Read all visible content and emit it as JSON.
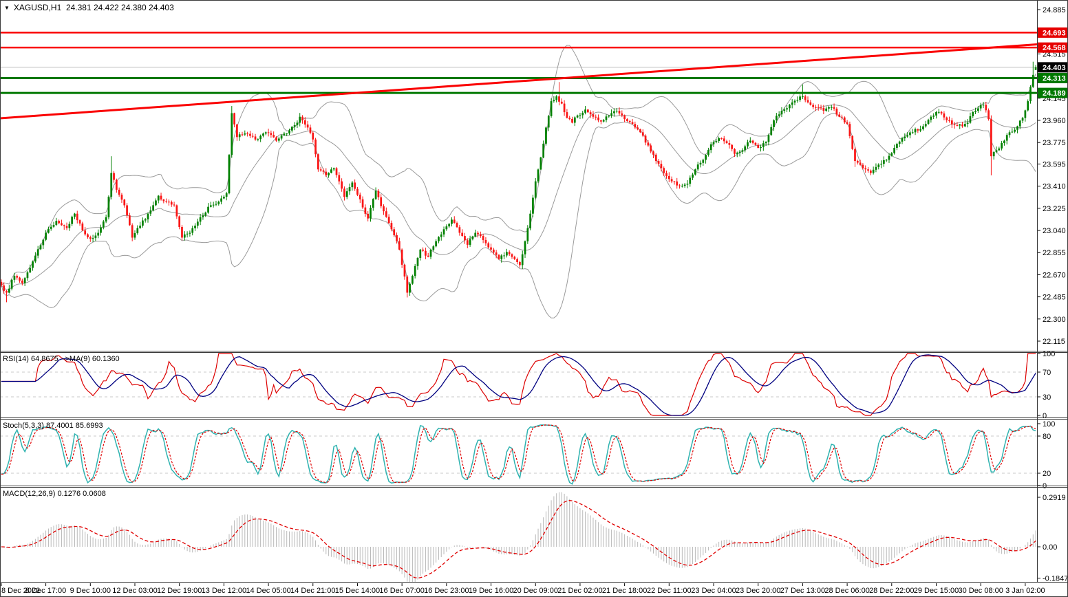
{
  "header": {
    "symbol": "XAGUSD",
    "timeframe": "H1",
    "ohlc": [
      "24.381",
      "24.422",
      "24.380",
      "24.403"
    ],
    "title_text": "XAGUSD,H1  24.381 24.422 24.380 24.403",
    "dropdown_icon": "symbol-dropdown"
  },
  "chart_data": {
    "type": "candlestick",
    "symbol": "XAGUSD",
    "timeframe": "H1",
    "bars": 396,
    "candle_up_color": "#008000",
    "candle_down_color": "#fa1515",
    "bollinger": {
      "period": 20,
      "deviation": 2,
      "color": "#9a9a9a"
    },
    "price_axis_ticks": [
      24.885,
      24.515,
      24.145,
      23.96,
      23.775,
      23.595,
      23.41,
      23.225,
      23.04,
      22.855,
      22.67,
      22.485,
      22.3,
      22.115
    ],
    "time_axis_labels": [
      "8 Dec 2022",
      "8 Dec 17:00",
      "9 Dec 10:00",
      "12 Dec 03:00",
      "12 Dec 19:00",
      "13 Dec 12:00",
      "14 Dec 05:00",
      "14 Dec 21:00",
      "15 Dec 14:00",
      "16 Dec 07:00",
      "16 Dec 23:00",
      "19 Dec 16:00",
      "20 Dec 09:00",
      "21 Dec 02:00",
      "21 Dec 18:00",
      "22 Dec 11:00",
      "23 Dec 04:00",
      "23 Dec 20:00",
      "27 Dec 13:00",
      "28 Dec 06:00",
      "28 Dec 22:00",
      "29 Dec 15:00",
      "30 Dec 08:00",
      "3 Jan 02:00"
    ],
    "label_every_bars": 17,
    "horizontal_lines": [
      {
        "price": 24.693,
        "color": "#fa0000",
        "role": "resistance",
        "width": 2.5
      },
      {
        "price": 24.568,
        "color": "#fa0000",
        "role": "resistance",
        "width": 2.5
      },
      {
        "price": 24.313,
        "color": "#007800",
        "role": "support",
        "width": 3
      },
      {
        "price": 24.189,
        "color": "#007800",
        "role": "support",
        "width": 3
      }
    ],
    "current_price": 24.403,
    "current_price_line_color": "#c0c0c0",
    "trendline": {
      "start_price": 23.977,
      "end_price": 24.595,
      "color": "#fa0000",
      "width": 3
    },
    "last_candle": {
      "open": 24.381,
      "high": 24.422,
      "low": 24.38,
      "close": 24.403
    },
    "close_anchors": [
      [
        0,
        22.58
      ],
      [
        2,
        22.52
      ],
      [
        5,
        22.66
      ],
      [
        8,
        22.6
      ],
      [
        12,
        22.78
      ],
      [
        17,
        23.02
      ],
      [
        21,
        23.12
      ],
      [
        25,
        23.06
      ],
      [
        28,
        23.18
      ],
      [
        31,
        23.04
      ],
      [
        34,
        22.97
      ],
      [
        37,
        23.02
      ],
      [
        40,
        23.15
      ],
      [
        42,
        23.52
      ],
      [
        44,
        23.38
      ],
      [
        47,
        23.25
      ],
      [
        50,
        22.98
      ],
      [
        53,
        23.08
      ],
      [
        56,
        23.18
      ],
      [
        60,
        23.33
      ],
      [
        63,
        23.28
      ],
      [
        66,
        23.25
      ],
      [
        69,
        22.98
      ],
      [
        72,
        23.02
      ],
      [
        76,
        23.15
      ],
      [
        80,
        23.25
      ],
      [
        83,
        23.28
      ],
      [
        86,
        23.35
      ],
      [
        88,
        24.02
      ],
      [
        90,
        23.82
      ],
      [
        93,
        23.85
      ],
      [
        97,
        23.8
      ],
      [
        101,
        23.86
      ],
      [
        105,
        23.79
      ],
      [
        109,
        23.85
      ],
      [
        112,
        23.92
      ],
      [
        114,
        23.99
      ],
      [
        117,
        23.9
      ],
      [
        119,
        23.8
      ],
      [
        121,
        23.55
      ],
      [
        124,
        23.5
      ],
      [
        127,
        23.56
      ],
      [
        129,
        23.45
      ],
      [
        131,
        23.32
      ],
      [
        134,
        23.44
      ],
      [
        137,
        23.3
      ],
      [
        140,
        23.14
      ],
      [
        143,
        23.37
      ],
      [
        146,
        23.2
      ],
      [
        149,
        23.05
      ],
      [
        152,
        22.88
      ],
      [
        155,
        22.52
      ],
      [
        157,
        22.66
      ],
      [
        160,
        22.88
      ],
      [
        163,
        22.82
      ],
      [
        166,
        22.95
      ],
      [
        169,
        23.05
      ],
      [
        172,
        23.13
      ],
      [
        175,
        23.02
      ],
      [
        178,
        22.92
      ],
      [
        181,
        23.02
      ],
      [
        184,
        22.96
      ],
      [
        187,
        22.88
      ],
      [
        190,
        22.8
      ],
      [
        193,
        22.86
      ],
      [
        196,
        22.8
      ],
      [
        198,
        22.75
      ],
      [
        200,
        22.95
      ],
      [
        202,
        23.18
      ],
      [
        204,
        23.45
      ],
      [
        206,
        23.65
      ],
      [
        208,
        23.9
      ],
      [
        210,
        24.12
      ],
      [
        212,
        24.16
      ],
      [
        214,
        24.1
      ],
      [
        216,
        23.98
      ],
      [
        218,
        23.94
      ],
      [
        220,
        24.0
      ],
      [
        223,
        24.05
      ],
      [
        226,
        23.99
      ],
      [
        229,
        23.95
      ],
      [
        232,
        24.0
      ],
      [
        235,
        24.04
      ],
      [
        238,
        23.97
      ],
      [
        241,
        23.93
      ],
      [
        244,
        23.86
      ],
      [
        247,
        23.75
      ],
      [
        250,
        23.62
      ],
      [
        253,
        23.52
      ],
      [
        256,
        23.45
      ],
      [
        259,
        23.41
      ],
      [
        262,
        23.43
      ],
      [
        265,
        23.55
      ],
      [
        268,
        23.63
      ],
      [
        271,
        23.76
      ],
      [
        274,
        23.81
      ],
      [
        277,
        23.77
      ],
      [
        280,
        23.68
      ],
      [
        283,
        23.71
      ],
      [
        286,
        23.79
      ],
      [
        289,
        23.73
      ],
      [
        292,
        23.78
      ],
      [
        295,
        23.96
      ],
      [
        298,
        24.04
      ],
      [
        301,
        24.09
      ],
      [
        304,
        24.13
      ],
      [
        306,
        24.16
      ],
      [
        308,
        24.11
      ],
      [
        311,
        24.07
      ],
      [
        314,
        24.04
      ],
      [
        317,
        24.07
      ],
      [
        320,
        23.99
      ],
      [
        323,
        23.93
      ],
      [
        326,
        23.62
      ],
      [
        329,
        23.56
      ],
      [
        332,
        23.52
      ],
      [
        335,
        23.59
      ],
      [
        338,
        23.63
      ],
      [
        341,
        23.73
      ],
      [
        344,
        23.81
      ],
      [
        348,
        23.86
      ],
      [
        352,
        23.91
      ],
      [
        355,
        23.99
      ],
      [
        358,
        24.03
      ],
      [
        361,
        23.96
      ],
      [
        364,
        23.92
      ],
      [
        367,
        23.91
      ],
      [
        369,
        23.94
      ],
      [
        371,
        24.03
      ],
      [
        373,
        24.06
      ],
      [
        375,
        24.09
      ],
      [
        377,
        23.97
      ],
      [
        378,
        23.66
      ],
      [
        380,
        23.71
      ],
      [
        382,
        23.77
      ],
      [
        385,
        23.86
      ],
      [
        388,
        23.91
      ],
      [
        390,
        23.98
      ],
      [
        392,
        24.12
      ],
      [
        393,
        24.24
      ],
      [
        394,
        24.34
      ],
      [
        395,
        24.403
      ]
    ],
    "wick_overrides": [
      [
        2,
        "low",
        22.44
      ],
      [
        42,
        "high",
        23.66
      ],
      [
        88,
        "high",
        24.08
      ],
      [
        155,
        "low",
        22.48
      ],
      [
        213,
        "high",
        24.28
      ],
      [
        306,
        "high",
        24.26
      ],
      [
        326,
        "low",
        23.57
      ],
      [
        378,
        "low",
        23.5
      ],
      [
        394,
        "high",
        24.45
      ]
    ],
    "indicators": {
      "rsi": {
        "label": "RSI(14) 64.8675  ->MA(9) 60.1360",
        "period": 14,
        "ma_period": 9,
        "last_value": "64.8675",
        "ma_last_value": "60.1360",
        "levels": [
          70,
          30
        ],
        "axis_labels": [
          "100",
          "70",
          "30",
          "0"
        ],
        "axis_values": [
          100,
          70,
          30,
          0
        ],
        "line_color": "#dd0000",
        "ma_color": "#000080"
      },
      "stoch": {
        "label": "Stoch(5,3,3) 87.4001 85.6993",
        "k_period": 5,
        "d_period": 3,
        "slowing": 3,
        "last_value": "87.4001",
        "signal_last_value": "85.6993",
        "levels": [
          80,
          20
        ],
        "axis_labels": [
          "100",
          "80",
          "20",
          "0"
        ],
        "axis_values": [
          100,
          80,
          20,
          0
        ],
        "k_color": "#2fb3b0",
        "d_color": "#e00000"
      },
      "macd": {
        "label": "MACD(12,26,9) 0.1276 0.0608",
        "fast": 12,
        "slow": 26,
        "signal": 9,
        "last_value": "0.1276",
        "signal_last_value": "0.0608",
        "axis_labels": [
          "0.2919",
          "0.00",
          "-0.1847"
        ],
        "axis_values": [
          0.2919,
          0,
          -0.1847
        ],
        "hist_color": "#b8b8b8",
        "signal_color": "#e00000"
      }
    }
  }
}
